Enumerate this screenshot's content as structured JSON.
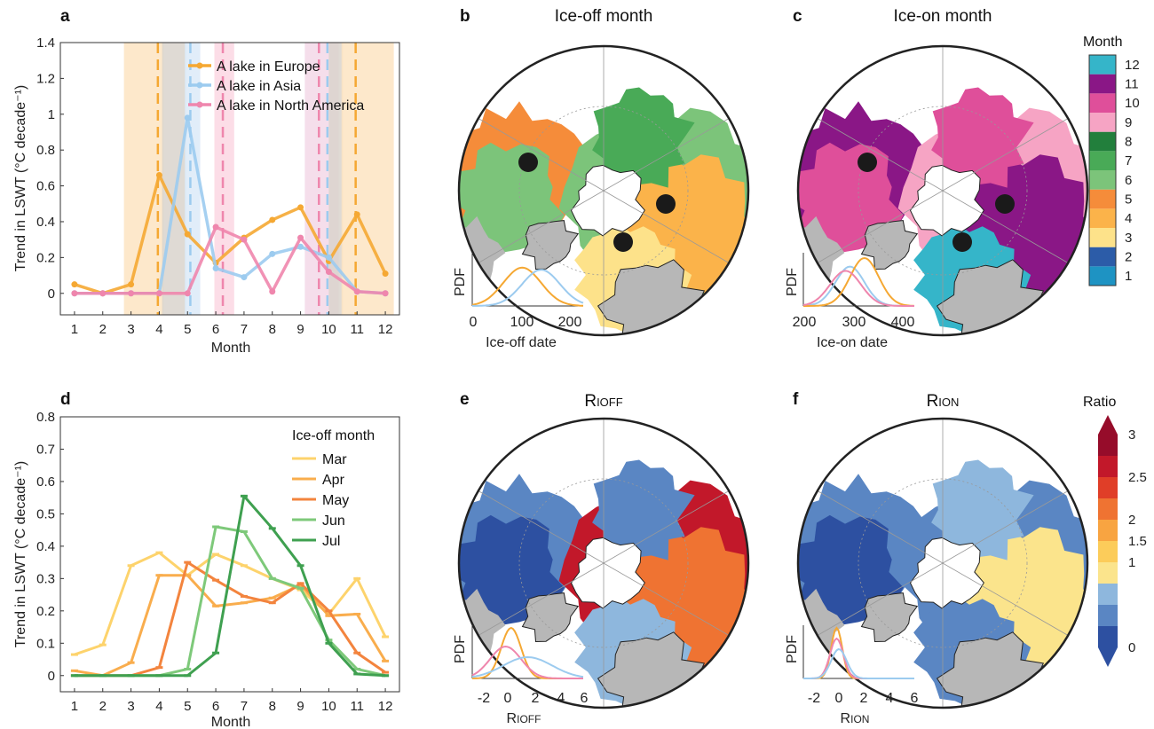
{
  "colors": {
    "europe": "#f5a833",
    "asia": "#9ccbef",
    "north_america": "#ef86ad",
    "mar": "#fdd36c",
    "apr": "#f9ad4d",
    "may": "#f3843e",
    "jun": "#7ec97a",
    "jul": "#3fa050"
  },
  "panel_letters": [
    "a",
    "b",
    "c",
    "d",
    "e",
    "f"
  ],
  "month_colorbar": {
    "title": "Month",
    "labels": [
      "1",
      "2",
      "3",
      "4",
      "5",
      "6",
      "7",
      "8",
      "9",
      "10",
      "11",
      "12"
    ],
    "colors": [
      "#1e93c3",
      "#2c5ca8",
      "#fde28a",
      "#fbb34a",
      "#f58c3a",
      "#7cc47a",
      "#49aa57",
      "#227f3c",
      "#f6a4c4",
      "#df4f9a",
      "#8a1786",
      "#35b5c9"
    ]
  },
  "ratio_colorbar": {
    "title": "Ratio",
    "labels": [
      "0",
      "1",
      "1.5",
      "2",
      "2.5",
      "3"
    ],
    "colors": [
      "#2d50a1",
      "#5a86c3",
      "#8eb7dd",
      "#fbe48c",
      "#fccc5a",
      "#f8a441",
      "#ef7332",
      "#e03e28",
      "#c2182a",
      "#960c2a"
    ]
  },
  "maps": {
    "b": {
      "title": "Ice-off month",
      "pdf_label": "PDF",
      "xlabel": "Ice-off date",
      "ticks": [
        "0",
        "100",
        "200"
      ]
    },
    "c": {
      "title": "Ice-on month",
      "pdf_label": "PDF",
      "xlabel": "Ice-on date",
      "ticks": [
        "200",
        "300",
        "400"
      ]
    },
    "e": {
      "title_main": "R",
      "title_sub": "IOFF",
      "pdf_label": "PDF",
      "xlabel_main": "R",
      "xlabel_sub": "IOFF",
      "ticks": [
        "-2",
        "0",
        "2",
        "4",
        "6"
      ]
    },
    "f": {
      "title_main": "R",
      "title_sub": "ION",
      "pdf_label": "PDF",
      "xlabel_main": "R",
      "xlabel_sub": "ION",
      "ticks": [
        "-2",
        "0",
        "2",
        "4",
        "6"
      ]
    }
  },
  "chart_data": [
    {
      "panel": "a",
      "type": "line",
      "xlabel": "Month",
      "ylabel": "Trend in LSWT (°C decade⁻¹)",
      "xlim": [
        0.5,
        12.5
      ],
      "ylim": [
        -0.12,
        1.4
      ],
      "xticks": [
        1,
        2,
        3,
        4,
        5,
        6,
        7,
        8,
        9,
        10,
        11,
        12
      ],
      "yticks": [
        0,
        0.2,
        0.4,
        0.6,
        0.8,
        1,
        1.2,
        1.4
      ],
      "ytick_labels": [
        "0",
        "0.2",
        "0.4",
        "0.6",
        "0.8",
        "1",
        "1.2",
        "1.4"
      ],
      "legend": "top-right",
      "x": [
        1,
        2,
        3,
        4,
        5,
        6,
        7,
        8,
        9,
        10,
        11,
        12
      ],
      "series": [
        {
          "name": "A lake in Europe",
          "color": "#f5a833",
          "values": [
            0.05,
            0.0,
            0.05,
            0.66,
            0.33,
            0.17,
            0.31,
            0.41,
            0.48,
            0.18,
            0.44,
            0.11
          ]
        },
        {
          "name": "A lake in Asia",
          "color": "#9ccbef",
          "values": [
            0.0,
            0.0,
            0.0,
            0.0,
            0.98,
            0.14,
            0.09,
            0.22,
            0.26,
            0.2,
            0.01,
            0.0
          ]
        },
        {
          "name": "A lake in North America",
          "color": "#ef86ad",
          "values": [
            0.0,
            0.0,
            0.0,
            0.0,
            0.0,
            0.37,
            0.3,
            0.01,
            0.31,
            0.12,
            0.01,
            0.0
          ]
        }
      ],
      "shaded_bands": [
        {
          "from": 2.75,
          "to": 4.15,
          "color": "#fde4c2"
        },
        {
          "from": 4.1,
          "to": 4.95,
          "color": "#d9d4cc"
        },
        {
          "from": 4.9,
          "to": 5.45,
          "color": "#dceaf8"
        },
        {
          "from": 5.95,
          "to": 6.65,
          "color": "#fbd7e3"
        },
        {
          "from": 9.15,
          "to": 10.35,
          "color": "#f3d8e8"
        },
        {
          "from": 10.0,
          "to": 10.5,
          "color": "#d9d4cc"
        },
        {
          "from": 10.45,
          "to": 12.3,
          "color": "#fde4c2"
        }
      ],
      "dashed_lines": [
        {
          "x": 3.95,
          "color": "#f5a833"
        },
        {
          "x": 5.1,
          "color": "#9ccbef"
        },
        {
          "x": 6.25,
          "color": "#ef86ad"
        },
        {
          "x": 9.65,
          "color": "#ef86ad"
        },
        {
          "x": 9.95,
          "color": "#9ccbef"
        },
        {
          "x": 10.95,
          "color": "#f5a833"
        }
      ]
    },
    {
      "panel": "d",
      "type": "line",
      "xlabel": "Month",
      "ylabel": "Trend in LSWT (°C decade⁻¹)",
      "xlim": [
        0.5,
        12.5
      ],
      "ylim": [
        -0.05,
        0.8
      ],
      "xticks": [
        1,
        2,
        3,
        4,
        5,
        6,
        7,
        8,
        9,
        10,
        11,
        12
      ],
      "yticks": [
        0,
        0.1,
        0.2,
        0.3,
        0.4,
        0.5,
        0.6,
        0.7,
        0.8
      ],
      "ytick_labels": [
        "0",
        "0.1",
        "0.2",
        "0.3",
        "0.4",
        "0.5",
        "0.6",
        "0.7",
        "0.8"
      ],
      "legend_title": "Ice-off month",
      "legend": "top-right",
      "x": [
        1,
        2,
        3,
        4,
        5,
        6,
        7,
        8,
        9,
        10,
        11,
        12
      ],
      "series": [
        {
          "name": "Mar",
          "color": "#fdd36c",
          "values": [
            0.065,
            0.095,
            0.34,
            0.38,
            0.31,
            0.375,
            0.34,
            0.3,
            0.265,
            0.19,
            0.3,
            0.12
          ]
        },
        {
          "name": "Apr",
          "color": "#f9ad4d",
          "values": [
            0.015,
            0.0,
            0.04,
            0.31,
            0.31,
            0.215,
            0.225,
            0.24,
            0.28,
            0.185,
            0.19,
            0.045
          ]
        },
        {
          "name": "May",
          "color": "#f3843e",
          "values": [
            0.0,
            0.0,
            0.0,
            0.025,
            0.35,
            0.295,
            0.245,
            0.225,
            0.285,
            0.2,
            0.07,
            0.01
          ]
        },
        {
          "name": "Jun",
          "color": "#7ec97a",
          "values": [
            0.0,
            0.0,
            0.0,
            0.0,
            0.02,
            0.46,
            0.445,
            0.3,
            0.27,
            0.11,
            0.02,
            0.0
          ]
        },
        {
          "name": "Jul",
          "color": "#3fa050",
          "values": [
            0.0,
            0.0,
            0.0,
            0.0,
            0.0,
            0.07,
            0.555,
            0.455,
            0.34,
            0.1,
            0.005,
            0.0
          ]
        }
      ]
    }
  ]
}
